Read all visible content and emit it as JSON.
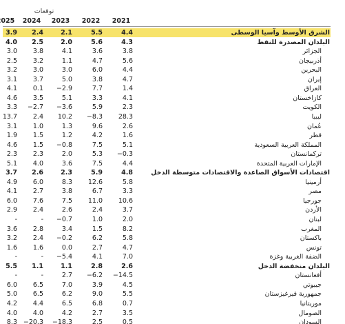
{
  "header": {
    "projections": "توقعات",
    "years": [
      "2025",
      "2024",
      "2023",
      "2022",
      "2021"
    ]
  },
  "rows": [
    {
      "label": "الشرق الأوسط وآسيا الوسطى",
      "values": [
        "3.9",
        "2.4",
        "2.1",
        "5.5",
        "4.4"
      ],
      "bold": true,
      "highlight": true
    },
    {
      "label": "البلدان المصدرة للنفط",
      "values": [
        "4.0",
        "2.5",
        "2.0",
        "5.6",
        "4.3"
      ],
      "bold": true
    },
    {
      "label": "الجزائر",
      "values": [
        "3.0",
        "3.8",
        "4.1",
        "3.6",
        "3.8"
      ]
    },
    {
      "label": "أذربيجان",
      "values": [
        "2.5",
        "3.2",
        "1.1",
        "4.7",
        "5.6"
      ]
    },
    {
      "label": "البحرين",
      "values": [
        "3.2",
        "3.0",
        "3.0",
        "6.0",
        "4.4"
      ]
    },
    {
      "label": "إيران",
      "values": [
        "3.1",
        "3.7",
        "5.0",
        "3.8",
        "4.7"
      ]
    },
    {
      "label": "العراق",
      "values": [
        "4.1",
        "0.1",
        "−2.9",
        "7.7",
        "1.4"
      ]
    },
    {
      "label": "كازاخستان",
      "values": [
        "4.6",
        "3.5",
        "5.1",
        "3.3",
        "4.1"
      ]
    },
    {
      "label": "الكويت",
      "values": [
        "3.3",
        "−2.7",
        "−3.6",
        "5.9",
        "2.3"
      ]
    },
    {
      "label": "ليبيا",
      "values": [
        "13.7",
        "2.4",
        "10.2",
        "−8.3",
        "28.3"
      ]
    },
    {
      "label": "عُمان",
      "values": [
        "3.1",
        "1.0",
        "1.3",
        "9.6",
        "2.6"
      ]
    },
    {
      "label": "قطر",
      "values": [
        "1.9",
        "1.5",
        "1.2",
        "4.2",
        "1.6"
      ]
    },
    {
      "label": "المملكة العربية السعودية",
      "values": [
        "4.6",
        "1.5",
        "−0.8",
        "7.5",
        "5.1"
      ]
    },
    {
      "label": "تركمانستان",
      "values": [
        "2.3",
        "2.3",
        "2.0",
        "5.3",
        "−0.3"
      ]
    },
    {
      "label": "الإمارات العربية المتحدة",
      "values": [
        "5.1",
        "4.0",
        "3.6",
        "7.5",
        "4.4"
      ]
    },
    {
      "label": "اقتصادات الأسواق الصاعدة والاقتصادات متوسطة الدخل",
      "values": [
        "3.7",
        "2.6",
        "2.3",
        "5.9",
        "4.8"
      ],
      "bold": true
    },
    {
      "label": "أرمينيا",
      "values": [
        "4.9",
        "6.0",
        "8.3",
        "12.6",
        "5.8"
      ]
    },
    {
      "label": "مصر",
      "values": [
        "4.1",
        "2.7",
        "3.8",
        "6.7",
        "3.3"
      ]
    },
    {
      "label": "جورجيا",
      "values": [
        "6.0",
        "7.6",
        "7.5",
        "11.0",
        "10.6"
      ]
    },
    {
      "label": "الأردن",
      "values": [
        "2.9",
        "2.4",
        "2.6",
        "2.4",
        "3.7"
      ]
    },
    {
      "label": "لبنان",
      "values": [
        "-",
        "-",
        "−0.7",
        "1.0",
        "2.0"
      ]
    },
    {
      "label": "المغرب",
      "values": [
        "3.6",
        "2.8",
        "3.4",
        "1.5",
        "8.2"
      ]
    },
    {
      "label": "باكستان",
      "values": [
        "3.2",
        "2.4",
        "−0.2",
        "6.2",
        "5.8"
      ]
    },
    {
      "label": "تونس",
      "values": [
        "1.6",
        "1.6",
        "0.0",
        "2.7",
        "4.7"
      ]
    },
    {
      "label": "الضفة الغربية وغزة",
      "values": [
        "-",
        "-",
        "−5.4",
        "4.1",
        "7.0"
      ]
    },
    {
      "label": "البلدان منخفضة الدخل",
      "values": [
        "5.5",
        "1.1",
        "1.1",
        "2.8",
        "2.6"
      ],
      "bold": true
    },
    {
      "label": "أفغانستان",
      "values": [
        "-",
        "-",
        "2.7",
        "−6.2",
        "−14.5"
      ]
    },
    {
      "label": "جيبوتي",
      "values": [
        "6.0",
        "6.5",
        "7.0",
        "3.9",
        "4.5"
      ]
    },
    {
      "label": "جمهورية قيرغيزستان",
      "values": [
        "5.0",
        "6.5",
        "6.2",
        "9.0",
        "5.5"
      ]
    },
    {
      "label": "موريتانيا",
      "values": [
        "4.2",
        "4.4",
        "6.5",
        "6.8",
        "0.7"
      ]
    },
    {
      "label": "الصومال",
      "values": [
        "4.0",
        "4.0",
        "4.2",
        "2.7",
        "3.5"
      ]
    },
    {
      "label": "السودان",
      "values": [
        "8.3",
        "−20.3",
        "−18.3",
        "2.5",
        "0.5"
      ]
    }
  ]
}
